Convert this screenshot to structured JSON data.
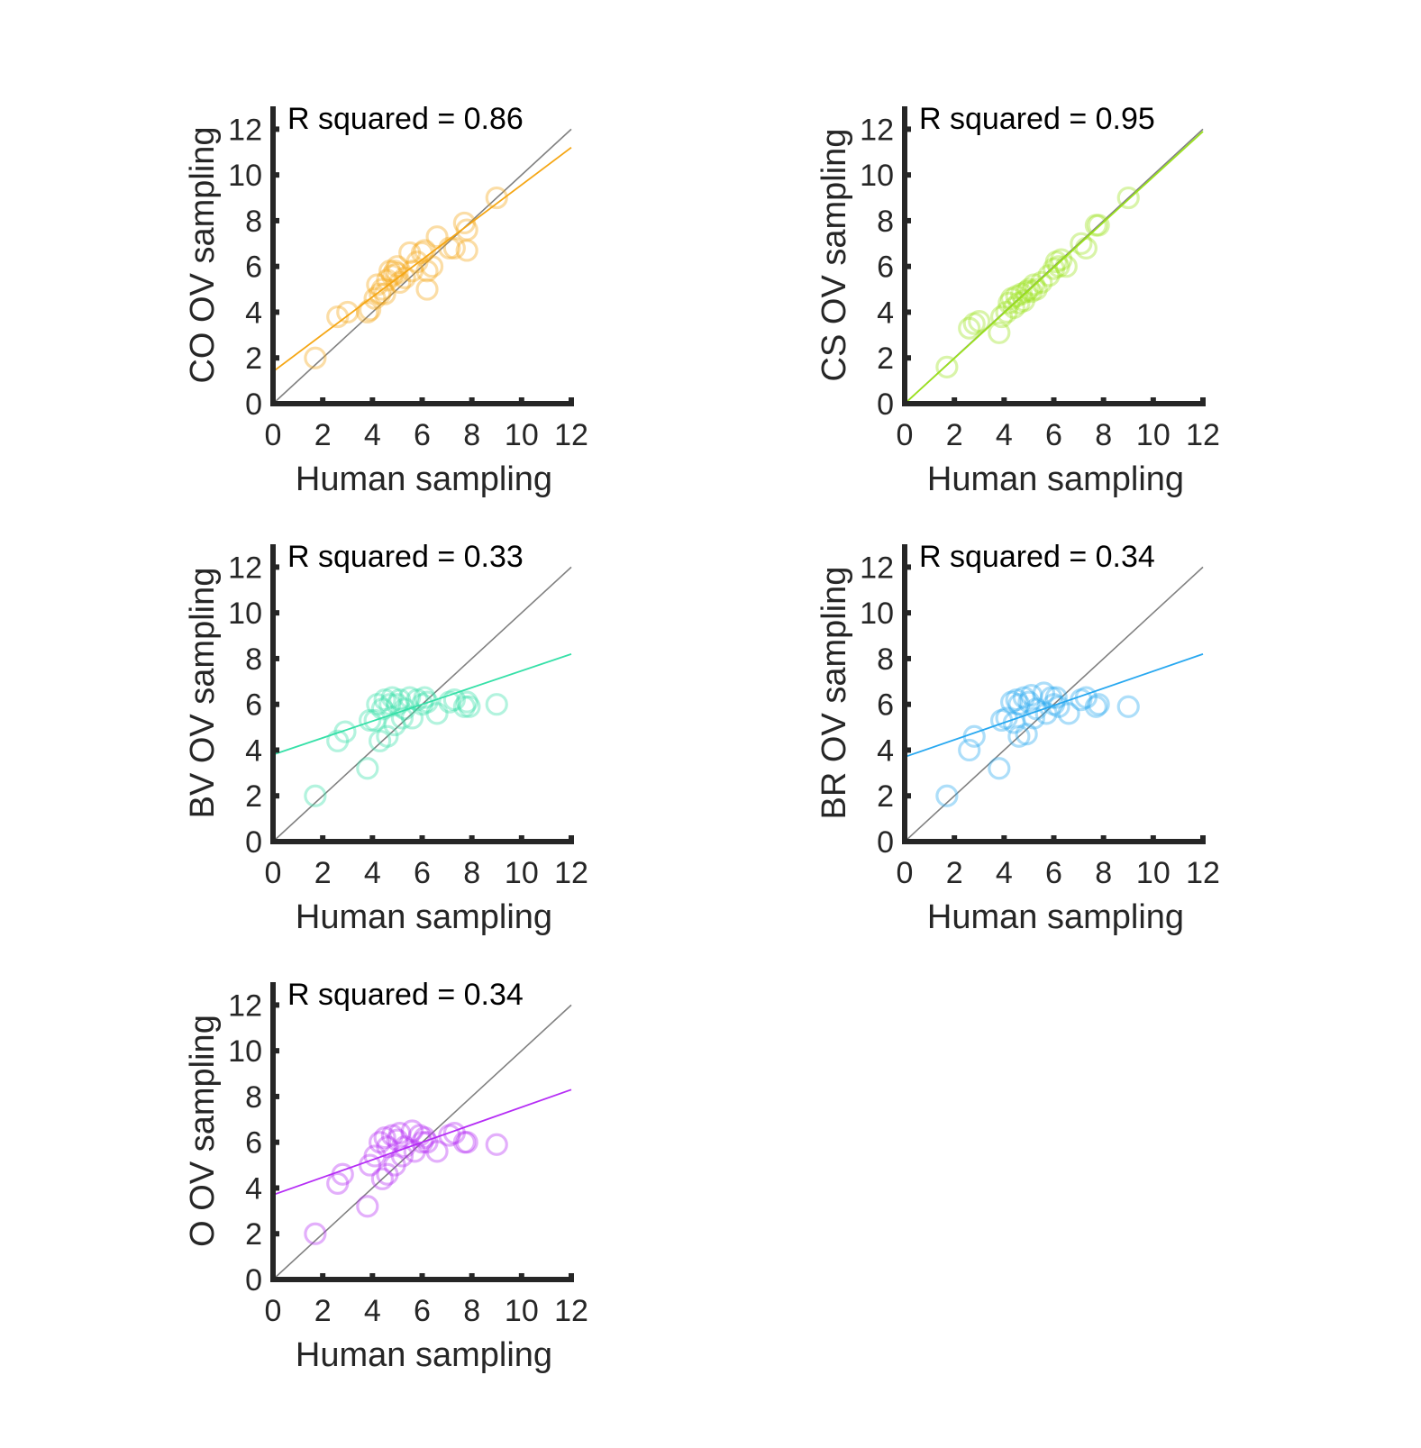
{
  "figure": {
    "background": "#ffffff",
    "axis_color": "#262626",
    "identity_line_color": "#808080"
  },
  "chart_data": [
    {
      "type": "scatter",
      "title": "",
      "xlabel": "Human sampling",
      "ylabel": "CO OV sampling",
      "annotation": "R squared = 0.86",
      "xlim": [
        0,
        12
      ],
      "ylim": [
        0,
        13
      ],
      "x_ticks": [
        0,
        2,
        4,
        6,
        8,
        10,
        12
      ],
      "y_ticks": [
        0,
        2,
        4,
        6,
        8,
        10,
        12
      ],
      "grid": false,
      "color": "#f5a614",
      "marker": "open-circle",
      "identity_line": {
        "from": [
          0,
          0
        ],
        "to": [
          12,
          12
        ]
      },
      "fit_line": {
        "from": [
          0,
          1.4
        ],
        "to": [
          12,
          11.2
        ]
      },
      "points": [
        [
          1.7,
          2.0
        ],
        [
          2.6,
          3.8
        ],
        [
          3.0,
          4.0
        ],
        [
          3.8,
          4.0
        ],
        [
          3.9,
          4.1
        ],
        [
          4.1,
          4.6
        ],
        [
          4.2,
          5.2
        ],
        [
          4.3,
          4.8
        ],
        [
          4.4,
          5.0
        ],
        [
          4.5,
          4.8
        ],
        [
          4.6,
          5.4
        ],
        [
          4.7,
          5.8
        ],
        [
          4.8,
          5.6
        ],
        [
          4.9,
          5.8
        ],
        [
          5.0,
          5.7
        ],
        [
          5.0,
          6.0
        ],
        [
          5.1,
          5.3
        ],
        [
          5.3,
          5.5
        ],
        [
          5.5,
          6.6
        ],
        [
          5.6,
          5.8
        ],
        [
          5.8,
          6.2
        ],
        [
          6.0,
          6.6
        ],
        [
          6.1,
          6.7
        ],
        [
          6.2,
          5.0
        ],
        [
          6.2,
          5.8
        ],
        [
          6.4,
          6.0
        ],
        [
          6.6,
          7.3
        ],
        [
          7.1,
          6.8
        ],
        [
          7.3,
          6.8
        ],
        [
          7.7,
          7.9
        ],
        [
          7.8,
          6.7
        ],
        [
          7.8,
          7.6
        ],
        [
          9.0,
          9.0
        ]
      ]
    },
    {
      "type": "scatter",
      "title": "",
      "xlabel": "Human sampling",
      "ylabel": "CS OV sampling",
      "annotation": "R squared = 0.95",
      "xlim": [
        0,
        12
      ],
      "ylim": [
        0,
        13
      ],
      "x_ticks": [
        0,
        2,
        4,
        6,
        8,
        10,
        12
      ],
      "y_ticks": [
        0,
        2,
        4,
        6,
        8,
        10,
        12
      ],
      "grid": false,
      "color": "#9be31c",
      "marker": "open-circle",
      "identity_line": {
        "from": [
          0,
          0
        ],
        "to": [
          12,
          12
        ]
      },
      "fit_line": {
        "from": [
          0,
          0.0
        ],
        "to": [
          12,
          11.9
        ]
      },
      "points": [
        [
          1.7,
          1.6
        ],
        [
          2.6,
          3.3
        ],
        [
          2.8,
          3.5
        ],
        [
          3.0,
          3.6
        ],
        [
          3.8,
          3.1
        ],
        [
          3.9,
          3.8
        ],
        [
          4.1,
          4.0
        ],
        [
          4.2,
          4.4
        ],
        [
          4.3,
          4.6
        ],
        [
          4.4,
          4.2
        ],
        [
          4.5,
          4.7
        ],
        [
          4.6,
          4.4
        ],
        [
          4.7,
          4.8
        ],
        [
          4.8,
          4.5
        ],
        [
          4.9,
          4.9
        ],
        [
          5.0,
          5.0
        ],
        [
          5.1,
          4.9
        ],
        [
          5.2,
          5.2
        ],
        [
          5.3,
          5.0
        ],
        [
          5.5,
          5.3
        ],
        [
          5.8,
          5.6
        ],
        [
          6.0,
          5.9
        ],
        [
          6.1,
          6.2
        ],
        [
          6.2,
          6.0
        ],
        [
          6.3,
          6.3
        ],
        [
          6.5,
          6.0
        ],
        [
          7.1,
          7.0
        ],
        [
          7.3,
          6.8
        ],
        [
          7.7,
          7.8
        ],
        [
          7.8,
          7.8
        ],
        [
          9.0,
          9.0
        ]
      ]
    },
    {
      "type": "scatter",
      "title": "",
      "xlabel": "Human sampling",
      "ylabel": "BV OV sampling",
      "annotation": "R squared = 0.33",
      "xlim": [
        0,
        12
      ],
      "ylim": [
        0,
        13
      ],
      "x_ticks": [
        0,
        2,
        4,
        6,
        8,
        10,
        12
      ],
      "y_ticks": [
        0,
        2,
        4,
        6,
        8,
        10,
        12
      ],
      "grid": false,
      "color": "#36e0a8",
      "marker": "open-circle",
      "identity_line": {
        "from": [
          0,
          0
        ],
        "to": [
          12,
          12
        ]
      },
      "fit_line": {
        "from": [
          0,
          3.8
        ],
        "to": [
          12,
          8.2
        ]
      },
      "points": [
        [
          1.7,
          2.0
        ],
        [
          2.6,
          4.4
        ],
        [
          2.9,
          4.8
        ],
        [
          3.8,
          3.2
        ],
        [
          3.9,
          5.3
        ],
        [
          4.1,
          5.3
        ],
        [
          4.2,
          6.0
        ],
        [
          4.3,
          4.4
        ],
        [
          4.4,
          5.8
        ],
        [
          4.5,
          6.2
        ],
        [
          4.6,
          4.6
        ],
        [
          4.7,
          6.0
        ],
        [
          4.8,
          6.3
        ],
        [
          4.9,
          5.1
        ],
        [
          5.0,
          6.0
        ],
        [
          5.1,
          6.2
        ],
        [
          5.2,
          5.4
        ],
        [
          5.3,
          5.8
        ],
        [
          5.5,
          6.3
        ],
        [
          5.6,
          5.4
        ],
        [
          5.8,
          6.2
        ],
        [
          6.0,
          6.0
        ],
        [
          6.1,
          6.3
        ],
        [
          6.2,
          6.1
        ],
        [
          6.6,
          5.6
        ],
        [
          7.1,
          6.1
        ],
        [
          7.3,
          6.2
        ],
        [
          7.7,
          5.9
        ],
        [
          7.8,
          6.1
        ],
        [
          7.9,
          5.9
        ],
        [
          9.0,
          6.0
        ]
      ]
    },
    {
      "type": "scatter",
      "title": "",
      "xlabel": "Human sampling",
      "ylabel": "BR OV sampling",
      "annotation": "R squared = 0.34",
      "xlim": [
        0,
        12
      ],
      "ylim": [
        0,
        13
      ],
      "x_ticks": [
        0,
        2,
        4,
        6,
        8,
        10,
        12
      ],
      "y_ticks": [
        0,
        2,
        4,
        6,
        8,
        10,
        12
      ],
      "grid": false,
      "color": "#28a8f0",
      "marker": "open-circle",
      "identity_line": {
        "from": [
          0,
          0
        ],
        "to": [
          12,
          12
        ]
      },
      "fit_line": {
        "from": [
          0,
          3.7
        ],
        "to": [
          12,
          8.2
        ]
      },
      "points": [
        [
          1.7,
          2.0
        ],
        [
          2.6,
          4.0
        ],
        [
          2.8,
          4.6
        ],
        [
          3.8,
          3.2
        ],
        [
          3.9,
          5.3
        ],
        [
          4.1,
          5.4
        ],
        [
          4.3,
          6.1
        ],
        [
          4.4,
          5.2
        ],
        [
          4.5,
          6.2
        ],
        [
          4.6,
          4.6
        ],
        [
          4.6,
          6.0
        ],
        [
          4.8,
          6.3
        ],
        [
          4.9,
          4.7
        ],
        [
          5.0,
          6.1
        ],
        [
          5.1,
          6.4
        ],
        [
          5.2,
          5.4
        ],
        [
          5.3,
          5.8
        ],
        [
          5.6,
          6.5
        ],
        [
          5.7,
          5.6
        ],
        [
          5.9,
          6.3
        ],
        [
          6.0,
          6.0
        ],
        [
          6.1,
          6.3
        ],
        [
          6.2,
          5.9
        ],
        [
          6.6,
          5.6
        ],
        [
          7.1,
          6.2
        ],
        [
          7.3,
          6.3
        ],
        [
          7.7,
          5.9
        ],
        [
          7.8,
          6.0
        ],
        [
          9.0,
          5.9
        ]
      ]
    },
    {
      "type": "scatter",
      "title": "",
      "xlabel": "Human sampling",
      "ylabel": "O OV sampling",
      "annotation": "R squared = 0.34",
      "xlim": [
        0,
        12
      ],
      "ylim": [
        0,
        13
      ],
      "x_ticks": [
        0,
        2,
        4,
        6,
        8,
        10,
        12
      ],
      "y_ticks": [
        0,
        2,
        4,
        6,
        8,
        10,
        12
      ],
      "grid": false,
      "color": "#b52df5",
      "marker": "open-circle",
      "identity_line": {
        "from": [
          0,
          0
        ],
        "to": [
          12,
          12
        ]
      },
      "fit_line": {
        "from": [
          0,
          3.7
        ],
        "to": [
          12,
          8.3
        ]
      },
      "points": [
        [
          1.7,
          2.0
        ],
        [
          2.6,
          4.2
        ],
        [
          2.8,
          4.6
        ],
        [
          3.8,
          3.2
        ],
        [
          3.9,
          5.0
        ],
        [
          4.1,
          5.4
        ],
        [
          4.3,
          6.0
        ],
        [
          4.4,
          4.4
        ],
        [
          4.5,
          6.2
        ],
        [
          4.6,
          4.6
        ],
        [
          4.6,
          5.8
        ],
        [
          4.8,
          6.3
        ],
        [
          4.9,
          5.0
        ],
        [
          5.0,
          6.1
        ],
        [
          5.1,
          6.4
        ],
        [
          5.2,
          5.4
        ],
        [
          5.3,
          5.8
        ],
        [
          5.6,
          6.5
        ],
        [
          5.7,
          5.6
        ],
        [
          5.9,
          6.3
        ],
        [
          6.0,
          6.0
        ],
        [
          6.1,
          6.2
        ],
        [
          6.2,
          6.0
        ],
        [
          6.6,
          5.6
        ],
        [
          7.1,
          6.3
        ],
        [
          7.3,
          6.4
        ],
        [
          7.7,
          6.0
        ],
        [
          7.8,
          6.0
        ],
        [
          9.0,
          5.9
        ]
      ]
    }
  ]
}
